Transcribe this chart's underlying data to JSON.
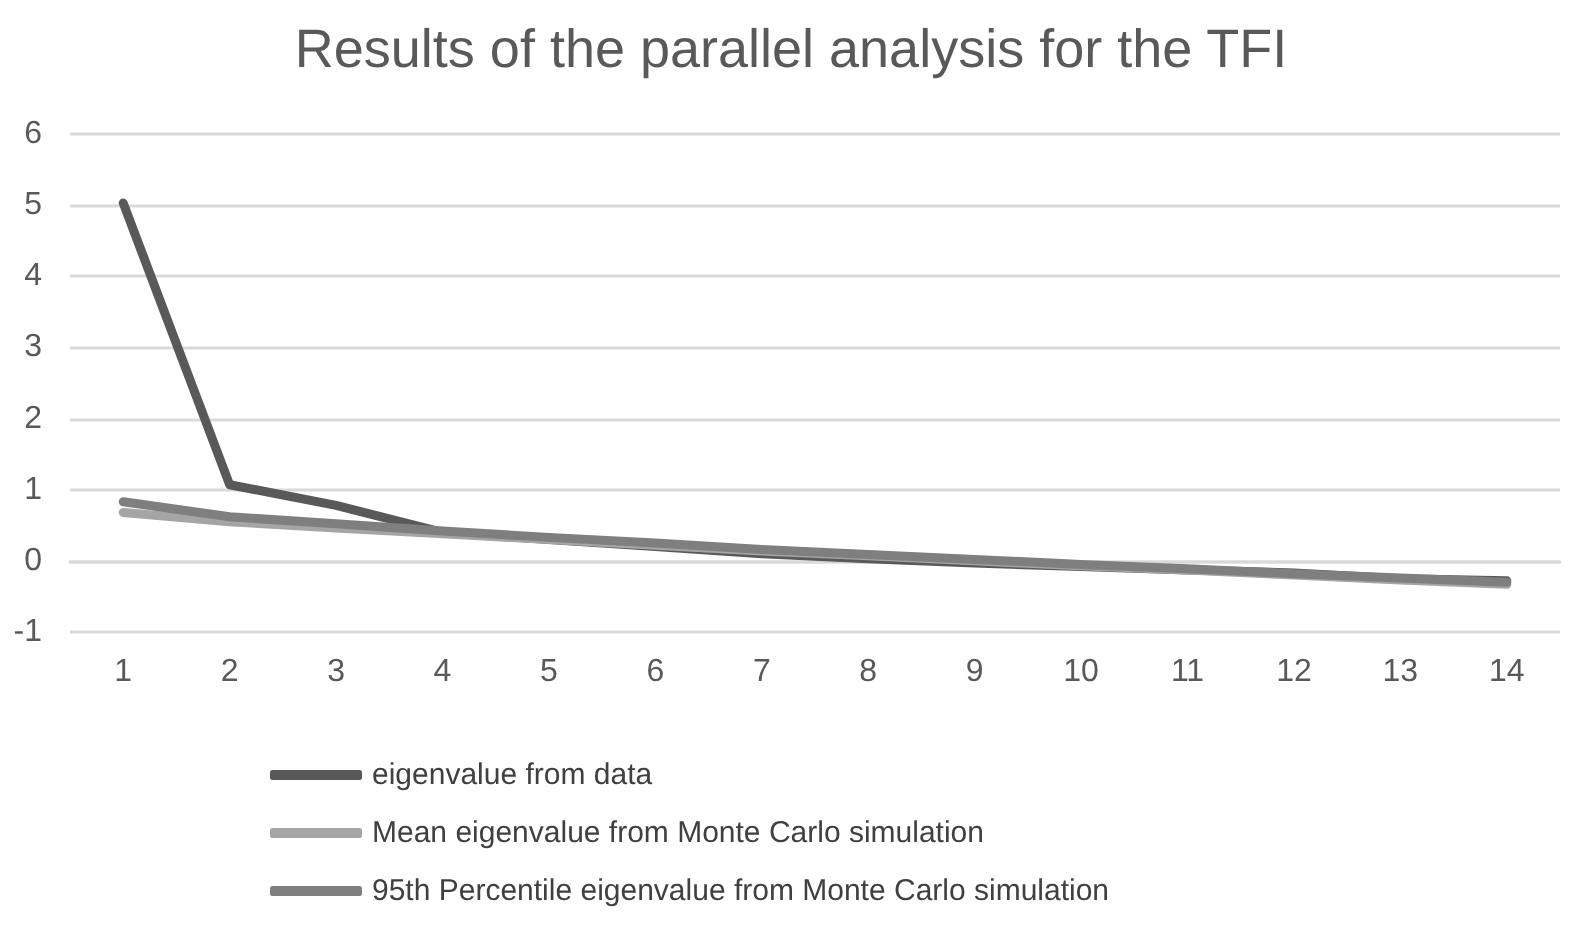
{
  "chart_data": {
    "type": "line",
    "title": "Results of the parallel analysis for the TFI",
    "categories": [
      "1",
      "2",
      "3",
      "4",
      "5",
      "6",
      "7",
      "8",
      "9",
      "10",
      "11",
      "12",
      "13",
      "14"
    ],
    "series": [
      {
        "name": "eigenvalue from data",
        "color": "#595959",
        "values": [
          5.03,
          1.07,
          0.78,
          0.4,
          0.3,
          0.2,
          0.1,
          0.03,
          -0.03,
          -0.08,
          -0.13,
          -0.17,
          -0.25,
          -0.28
        ]
      },
      {
        "name": "Mean eigenvalue from Monte Carlo simulation",
        "color": "#a5a5a5",
        "values": [
          0.68,
          0.55,
          0.46,
          0.38,
          0.3,
          0.22,
          0.14,
          0.07,
          0.0,
          -0.07,
          -0.13,
          -0.2,
          -0.27,
          -0.33
        ]
      },
      {
        "name": "95th Percentile eigenvalue from Monte Carlo simulation",
        "color": "#7f7f7f",
        "values": [
          0.83,
          0.62,
          0.52,
          0.42,
          0.33,
          0.25,
          0.16,
          0.09,
          0.02,
          -0.05,
          -0.11,
          -0.18,
          -0.24,
          -0.3
        ]
      }
    ],
    "ylim": [
      -1,
      6
    ],
    "yticks": [
      -1,
      0,
      1,
      2,
      3,
      4,
      5,
      6
    ],
    "grid": "y",
    "legend": "bottom",
    "marker": "none",
    "line_style": "solid"
  }
}
